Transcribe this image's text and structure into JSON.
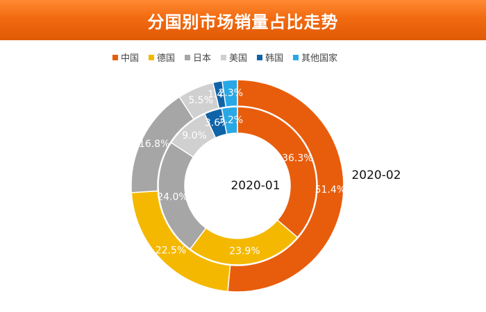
{
  "title": "分国别市场销量占比走势",
  "legend": [
    {
      "name": "中国",
      "color": "#e85d0c"
    },
    {
      "name": "德国",
      "color": "#f5b800"
    },
    {
      "name": "日本",
      "color": "#a6a6a6"
    },
    {
      "name": "美国",
      "color": "#d0d0d0"
    },
    {
      "name": "韩国",
      "color": "#0f63a8"
    },
    {
      "name": "其他国家",
      "color": "#29a8e6"
    }
  ],
  "chart_data": {
    "type": "pie",
    "style": "concentric-donut",
    "categories": [
      "中国",
      "德国",
      "日本",
      "美国",
      "韩国",
      "其他国家"
    ],
    "series": [
      {
        "name": "2020-01",
        "ring": "inner",
        "values": [
          36.3,
          23.9,
          24.0,
          9.0,
          3.6,
          3.2
        ]
      },
      {
        "name": "2020-02",
        "ring": "outer",
        "values": [
          51.4,
          22.5,
          16.8,
          5.5,
          1.4,
          2.3
        ]
      }
    ],
    "value_labels": {
      "2020-01": [
        "36.3%",
        "23.9%",
        "24.0%",
        "9.0%",
        "3.6%",
        "3.2%"
      ],
      "2020-02": [
        "51.4%",
        "22.5%",
        "16.8%",
        "5.5%",
        "1.4%",
        "2.3%"
      ]
    },
    "legend_position": "top"
  }
}
